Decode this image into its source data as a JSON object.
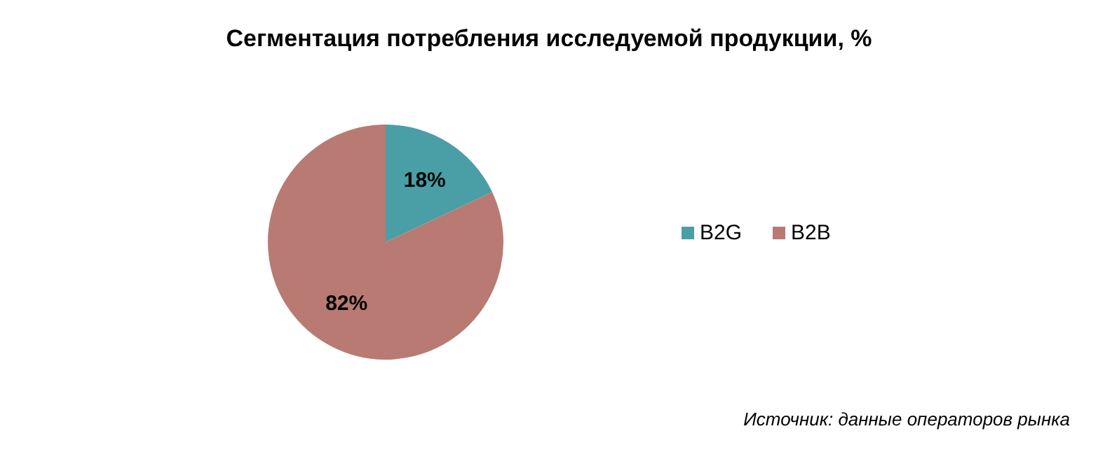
{
  "chart_data": {
    "type": "pie",
    "title": "Сегментация потребления исследуемой продукции, %",
    "categories": [
      "B2G",
      "B2B"
    ],
    "values": [
      18,
      82
    ],
    "colors": [
      "#4a9ea6",
      "#b87a72"
    ],
    "value_labels": [
      "18%",
      "82%"
    ],
    "legend": "right",
    "annotations": [
      "Источник: данные операторов рынка"
    ]
  }
}
